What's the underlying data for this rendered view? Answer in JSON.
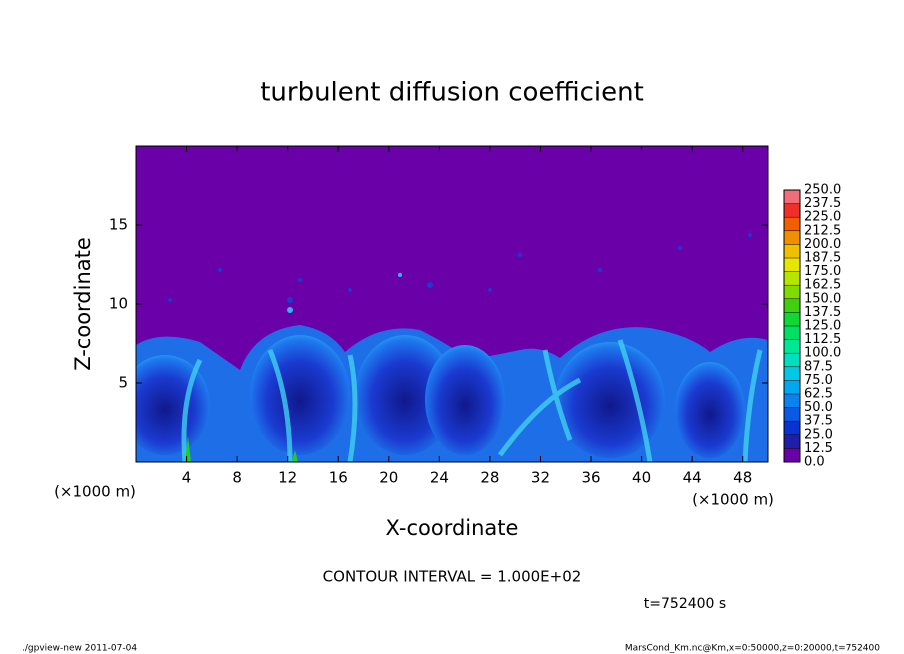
{
  "chart_data": {
    "type": "contour",
    "title": "turbulent diffusion coefficient",
    "xlabel": "X-coordinate",
    "ylabel": "Z-coordinate",
    "x_unit_left": "(×1000 m)",
    "x_unit_right": "(×1000 m)",
    "xlim": [
      0,
      50
    ],
    "xticks": [
      4,
      8,
      12,
      16,
      20,
      24,
      28,
      32,
      36,
      40,
      44,
      48
    ],
    "ylim": [
      0,
      20
    ],
    "yticks": [
      5,
      10,
      15
    ],
    "colorbar": {
      "ticks": [
        {
          "value": 0,
          "label": "0.0"
        },
        12.5,
        {
          "value": 25,
          "label": "25.0"
        },
        37.5,
        {
          "value": 50,
          "label": "50.0"
        },
        62.5,
        {
          "value": 75,
          "label": "75.0"
        },
        87.5,
        {
          "value": 100,
          "label": "100.0"
        },
        112.5,
        {
          "value": 125,
          "label": "125.0"
        },
        137.5,
        {
          "value": 150,
          "label": "150.0"
        },
        162.5,
        {
          "value": 175,
          "label": "175.0"
        },
        187.5,
        {
          "value": 200,
          "label": "200.0"
        },
        212.5,
        {
          "value": 225,
          "label": "225.0"
        },
        237.5,
        {
          "value": 250,
          "label": "250.0"
        }
      ],
      "colors": [
        "#6a00a8",
        "#1e1ea8",
        "#0a32d2",
        "#0a5ae6",
        "#0a82f0",
        "#00a8f0",
        "#00c8e6",
        "#00e0c0",
        "#00e896",
        "#00e064",
        "#10d832",
        "#40d010",
        "#80dc00",
        "#b4e600",
        "#e6e600",
        "#f0c000",
        "#f09000",
        "#f06000",
        "#f03028",
        "#f06e78"
      ]
    },
    "contour_interval": "CONTOUR INTERVAL = 1.000E+02",
    "time_label": "t=752400 s",
    "footer_left": "./gpview-new  2011-07-04",
    "footer_right": "MarsCond_Km.nc@Km,x=0:50000,z=0:20000,t=752400"
  }
}
